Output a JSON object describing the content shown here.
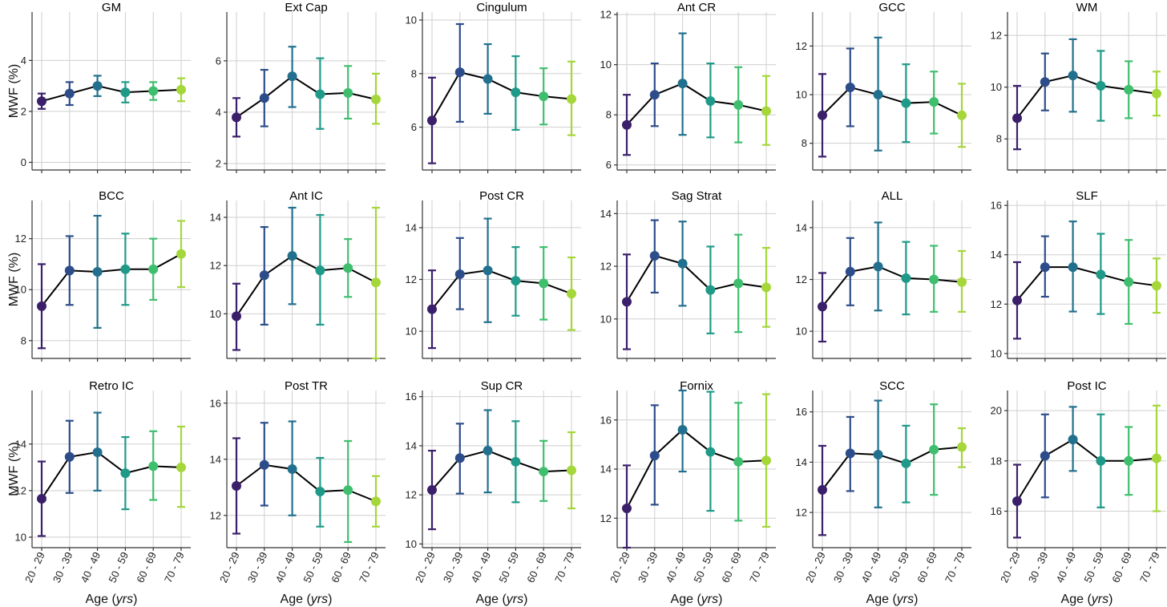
{
  "figure": {
    "ylabel": "MWF (%)",
    "xlabel_prefix": "Age (",
    "xlabel_unit": "yrs",
    "xlabel_suffix": ")"
  },
  "chart_data": [
    {
      "type": "line",
      "title": "GM",
      "categories": [
        "20 - 29",
        "30 - 39",
        "40 - 49",
        "50 - 59",
        "60 - 69",
        "70 - 79"
      ],
      "values": [
        2.4,
        2.7,
        3.0,
        2.75,
        2.8,
        2.85
      ],
      "err_low": [
        2.1,
        2.25,
        2.6,
        2.35,
        2.45,
        2.4
      ],
      "err_high": [
        2.7,
        3.15,
        3.4,
        3.15,
        3.15,
        3.3
      ],
      "ylim": [
        -0.3,
        5.9
      ],
      "yticks": [
        0,
        2,
        4
      ]
    },
    {
      "type": "line",
      "title": "Ext Cap",
      "categories": [
        "20 - 29",
        "30 - 39",
        "40 - 49",
        "50 - 59",
        "60 - 69",
        "70 - 79"
      ],
      "values": [
        3.8,
        4.55,
        5.4,
        4.7,
        4.75,
        4.5
      ],
      "err_low": [
        3.05,
        3.45,
        4.2,
        3.35,
        3.75,
        3.55
      ],
      "err_high": [
        4.55,
        5.65,
        6.55,
        6.1,
        5.8,
        5.5
      ],
      "ylim": [
        1.75,
        7.9
      ],
      "yticks": [
        2,
        4,
        6
      ]
    },
    {
      "type": "line",
      "title": "Cingulum",
      "categories": [
        "20 - 29",
        "30 - 39",
        "40 - 49",
        "50 - 59",
        "60 - 69",
        "70 - 79"
      ],
      "values": [
        6.25,
        8.05,
        7.8,
        7.3,
        7.15,
        7.05
      ],
      "err_low": [
        4.65,
        6.2,
        6.5,
        5.9,
        6.1,
        5.7
      ],
      "err_high": [
        7.85,
        9.85,
        9.1,
        8.65,
        8.2,
        8.45
      ],
      "ylim": [
        4.4,
        10.3
      ],
      "yticks": [
        6,
        8,
        10
      ]
    },
    {
      "type": "line",
      "title": "Ant CR",
      "categories": [
        "20 - 29",
        "30 - 39",
        "40 - 49",
        "50 - 59",
        "60 - 69",
        "70 - 79"
      ],
      "values": [
        7.6,
        8.8,
        9.25,
        8.55,
        8.4,
        8.15
      ],
      "err_low": [
        6.4,
        7.55,
        7.2,
        7.1,
        6.9,
        6.8
      ],
      "err_high": [
        8.8,
        10.05,
        11.25,
        10.05,
        9.9,
        9.55
      ],
      "ylim": [
        5.8,
        12.1
      ],
      "yticks": [
        6,
        8,
        10,
        12
      ]
    },
    {
      "type": "line",
      "title": "GCC",
      "categories": [
        "20 - 29",
        "30 - 39",
        "40 - 49",
        "50 - 59",
        "60 - 69",
        "70 - 79"
      ],
      "values": [
        9.15,
        10.3,
        10.0,
        9.65,
        9.7,
        9.15
      ],
      "err_low": [
        7.45,
        8.7,
        7.7,
        8.05,
        8.4,
        7.85
      ],
      "err_high": [
        10.85,
        11.9,
        12.35,
        11.25,
        10.95,
        10.45
      ],
      "ylim": [
        6.9,
        13.4
      ],
      "yticks": [
        8,
        10,
        12
      ]
    },
    {
      "type": "line",
      "title": "WM",
      "categories": [
        "20 - 29",
        "30 - 39",
        "40 - 49",
        "50 - 59",
        "60 - 69",
        "70 - 79"
      ],
      "values": [
        8.8,
        10.2,
        10.45,
        10.05,
        9.9,
        9.75
      ],
      "err_low": [
        7.6,
        9.1,
        9.05,
        8.7,
        8.8,
        8.9
      ],
      "err_high": [
        10.05,
        11.3,
        11.85,
        11.4,
        11.0,
        10.6
      ],
      "ylim": [
        6.8,
        12.9
      ],
      "yticks": [
        8,
        10,
        12
      ]
    },
    {
      "type": "line",
      "title": "BCC",
      "categories": [
        "20 - 29",
        "30 - 39",
        "40 - 49",
        "50 - 59",
        "60 - 69",
        "70 - 79"
      ],
      "values": [
        9.35,
        10.75,
        10.7,
        10.8,
        10.8,
        11.4
      ],
      "err_low": [
        7.7,
        9.4,
        8.5,
        9.4,
        9.6,
        10.1
      ],
      "err_high": [
        11.0,
        12.1,
        12.9,
        12.2,
        12.0,
        12.7
      ],
      "ylim": [
        7.3,
        13.5
      ],
      "yticks": [
        8,
        10,
        12
      ]
    },
    {
      "type": "line",
      "title": "Ant IC",
      "categories": [
        "20 - 29",
        "30 - 39",
        "40 - 49",
        "50 - 59",
        "60 - 69",
        "70 - 79"
      ],
      "values": [
        9.9,
        11.6,
        12.4,
        11.8,
        11.9,
        11.3
      ],
      "err_low": [
        8.5,
        9.55,
        10.4,
        9.55,
        10.7,
        8.15
      ],
      "err_high": [
        11.25,
        13.6,
        14.4,
        14.1,
        13.1,
        14.4
      ],
      "ylim": [
        8.15,
        14.7
      ],
      "yticks": [
        10,
        12,
        14
      ]
    },
    {
      "type": "line",
      "title": "Post CR",
      "categories": [
        "20 - 29",
        "30 - 39",
        "40 - 49",
        "50 - 59",
        "60 - 69",
        "70 - 79"
      ],
      "values": [
        10.85,
        12.2,
        12.35,
        11.95,
        11.85,
        11.45
      ],
      "err_low": [
        9.35,
        10.85,
        10.35,
        10.6,
        10.45,
        10.05
      ],
      "err_high": [
        12.35,
        13.6,
        14.35,
        13.25,
        13.25,
        12.85
      ],
      "ylim": [
        8.95,
        15.05
      ],
      "yticks": [
        10,
        12,
        14
      ]
    },
    {
      "type": "line",
      "title": "Sag Strat",
      "categories": [
        "20 - 29",
        "30 - 39",
        "40 - 49",
        "50 - 59",
        "60 - 69",
        "70 - 79"
      ],
      "values": [
        10.65,
        12.4,
        12.1,
        11.1,
        11.35,
        11.2
      ],
      "err_low": [
        8.85,
        11.0,
        10.5,
        9.45,
        9.5,
        9.7
      ],
      "err_high": [
        12.45,
        13.75,
        13.7,
        12.75,
        13.2,
        12.7
      ],
      "ylim": [
        8.5,
        14.5
      ],
      "yticks": [
        10,
        12,
        14
      ]
    },
    {
      "type": "line",
      "title": "ALL",
      "categories": [
        "20 - 29",
        "30 - 39",
        "40 - 49",
        "50 - 59",
        "60 - 69",
        "70 - 79"
      ],
      "values": [
        10.95,
        12.3,
        12.5,
        12.05,
        12.0,
        11.9
      ],
      "err_low": [
        9.6,
        11.0,
        10.8,
        10.65,
        10.75,
        10.75
      ],
      "err_high": [
        12.25,
        13.6,
        14.2,
        13.45,
        13.3,
        13.1
      ],
      "ylim": [
        8.95,
        15.05
      ],
      "yticks": [
        10,
        12,
        14
      ]
    },
    {
      "type": "line",
      "title": "SLF",
      "categories": [
        "20 - 29",
        "30 - 39",
        "40 - 49",
        "50 - 59",
        "60 - 69",
        "70 - 79"
      ],
      "values": [
        12.15,
        13.5,
        13.5,
        13.2,
        12.9,
        12.75
      ],
      "err_low": [
        10.6,
        12.3,
        11.7,
        11.6,
        11.2,
        11.65
      ],
      "err_high": [
        13.7,
        14.75,
        15.35,
        14.85,
        14.6,
        13.85
      ],
      "ylim": [
        9.8,
        16.2
      ],
      "yticks": [
        10,
        12,
        14,
        16
      ]
    },
    {
      "type": "line",
      "title": "Retro IC",
      "categories": [
        "20 - 29",
        "30 - 39",
        "40 - 49",
        "50 - 59",
        "60 - 69",
        "70 - 79"
      ],
      "values": [
        11.65,
        13.45,
        13.65,
        12.75,
        13.05,
        13.0
      ],
      "err_low": [
        10.05,
        11.9,
        12.0,
        11.2,
        11.6,
        11.3
      ],
      "err_high": [
        13.25,
        15.0,
        15.35,
        14.3,
        14.55,
        14.75
      ],
      "ylim": [
        9.55,
        16.3
      ],
      "yticks": [
        10,
        12,
        14
      ]
    },
    {
      "type": "line",
      "title": "Post TR",
      "categories": [
        "20 - 29",
        "30 - 39",
        "40 - 49",
        "50 - 59",
        "60 - 69",
        "70 - 79"
      ],
      "values": [
        13.05,
        13.8,
        13.65,
        12.85,
        12.9,
        12.5
      ],
      "err_low": [
        11.35,
        12.35,
        12.0,
        11.6,
        11.05,
        11.6
      ],
      "err_high": [
        14.75,
        15.3,
        15.35,
        14.05,
        14.65,
        13.4
      ],
      "ylim": [
        10.85,
        16.45
      ],
      "yticks": [
        12,
        14,
        16
      ]
    },
    {
      "type": "line",
      "title": "Sup CR",
      "categories": [
        "20 - 29",
        "30 - 39",
        "40 - 49",
        "50 - 59",
        "60 - 69",
        "70 - 79"
      ],
      "values": [
        12.2,
        13.5,
        13.8,
        13.35,
        12.95,
        13.0
      ],
      "err_low": [
        10.6,
        12.05,
        12.1,
        11.7,
        11.75,
        11.45
      ],
      "err_high": [
        13.8,
        14.9,
        15.45,
        15.0,
        14.2,
        14.55
      ],
      "ylim": [
        9.85,
        16.25
      ],
      "yticks": [
        10,
        12,
        14,
        16
      ]
    },
    {
      "type": "line",
      "title": "Fornix",
      "categories": [
        "20 - 29",
        "30 - 39",
        "40 - 49",
        "50 - 59",
        "60 - 69",
        "70 - 79"
      ],
      "values": [
        12.4,
        14.55,
        15.6,
        14.7,
        14.3,
        14.35
      ],
      "err_low": [
        10.8,
        12.55,
        13.9,
        12.3,
        11.9,
        11.65
      ],
      "err_high": [
        14.15,
        16.6,
        17.2,
        17.15,
        16.7,
        17.05
      ],
      "ylim": [
        10.8,
        17.2
      ],
      "yticks": [
        12,
        14,
        16
      ]
    },
    {
      "type": "line",
      "title": "SCC",
      "categories": [
        "20 - 29",
        "30 - 39",
        "40 - 49",
        "50 - 59",
        "60 - 69",
        "70 - 79"
      ],
      "values": [
        12.9,
        14.35,
        14.3,
        13.95,
        14.5,
        14.6
      ],
      "err_low": [
        11.1,
        12.85,
        12.2,
        12.4,
        12.7,
        13.8
      ],
      "err_high": [
        14.65,
        15.8,
        16.45,
        15.45,
        16.3,
        15.35
      ],
      "ylim": [
        10.6,
        16.85
      ],
      "yticks": [
        12,
        14,
        16
      ]
    },
    {
      "type": "line",
      "title": "Post IC",
      "categories": [
        "20 - 29",
        "30 - 39",
        "40 - 49",
        "50 - 59",
        "60 - 69",
        "70 - 79"
      ],
      "values": [
        16.4,
        18.2,
        18.85,
        18.0,
        18.0,
        18.1
      ],
      "err_low": [
        14.95,
        16.55,
        17.6,
        16.15,
        16.65,
        16.0
      ],
      "err_high": [
        17.85,
        19.85,
        20.15,
        19.85,
        19.35,
        20.2
      ],
      "ylim": [
        14.55,
        20.8
      ],
      "yticks": [
        16,
        18,
        20
      ]
    }
  ]
}
